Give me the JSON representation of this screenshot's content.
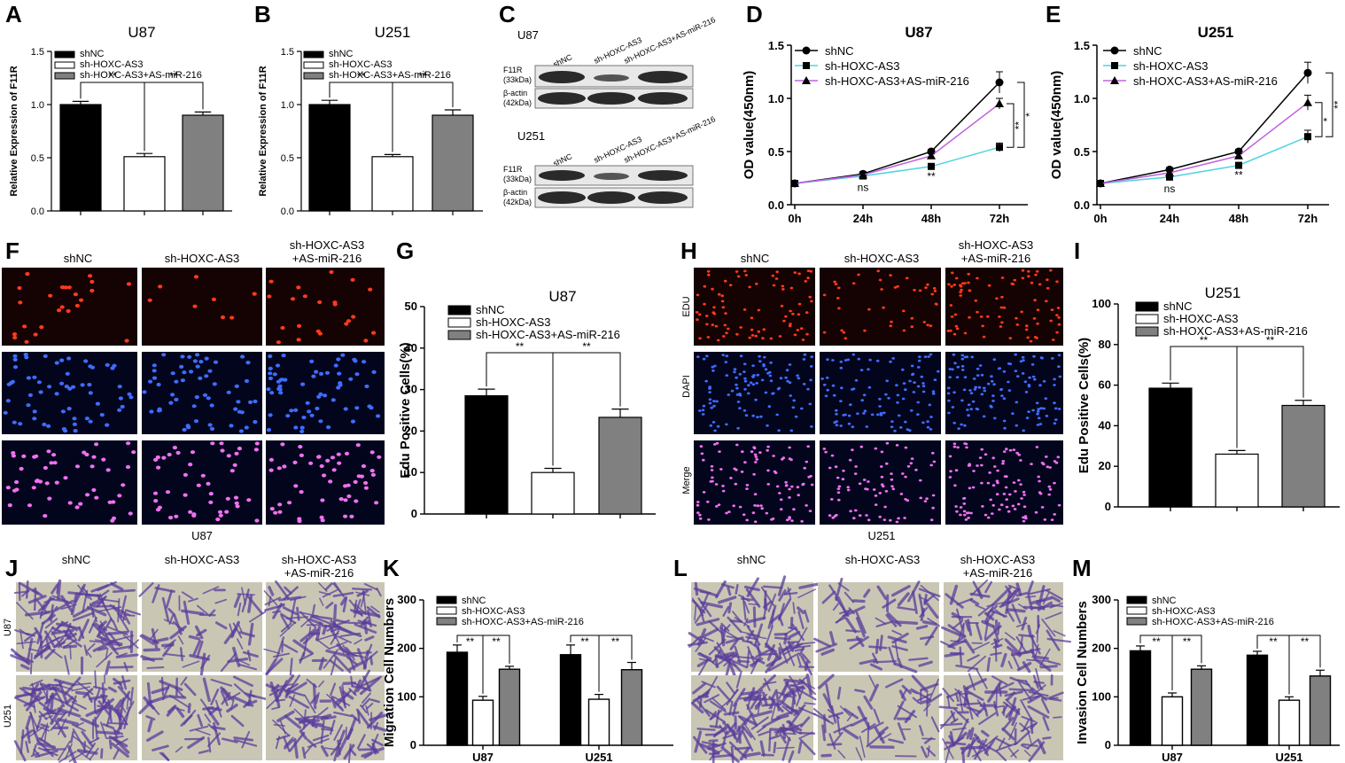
{
  "panels": {
    "A": {
      "label": "A"
    },
    "B": {
      "label": "B"
    },
    "C": {
      "label": "C"
    },
    "D": {
      "label": "D"
    },
    "E": {
      "label": "E"
    },
    "F": {
      "label": "F"
    },
    "G": {
      "label": "G"
    },
    "H": {
      "label": "H"
    },
    "I": {
      "label": "I"
    },
    "J": {
      "label": "J"
    },
    "K": {
      "label": "K"
    },
    "L": {
      "label": "L"
    },
    "M": {
      "label": "M"
    }
  },
  "groups": [
    "shNC",
    "sh-HOXC-AS3",
    "sh-HOXC-AS3+AS-miR-216"
  ],
  "image_panels": {
    "col_shNC": "shNC",
    "col_sh": "sh-HOXC-AS3",
    "col_rescue_1": "sh-HOXC-AS3",
    "col_rescue_2": "+AS-miR-216",
    "edu_rows": [
      "EDU",
      "DAPI",
      "Merge"
    ],
    "F_caption": "U87",
    "H_caption": "U251",
    "transwell_rows": [
      "U87",
      "U251"
    ]
  },
  "western": {
    "cell_U87": "U87",
    "cell_U251": "U251",
    "lanes": [
      "shNC",
      "sh-HOXC-AS3",
      "sh-HOXC-AS3+AS-miR-216"
    ],
    "f11r_1": "F11R",
    "f11r_2": "(33kDa)",
    "actin_1": "β-actin",
    "actin_2": "(42kDa)"
  },
  "colors": {
    "black": "#000000",
    "white": "#ffffff",
    "gray": "#808080",
    "line_shNC": "#000000",
    "line_sh": "#4fd3e0",
    "line_rescue": "#c060e0",
    "edu_bg": "#150202",
    "edu_dot": "#ff3a1a",
    "dapi_bg": "#03051c",
    "dapi_dot": "#3f6cff",
    "merge_dot": "#f070f0",
    "transwell_bg": "#c9c7b4",
    "transwell_cell": "#5b3d9c",
    "blot_bg": "#e8e8e8",
    "blot_band": "#2a2a2a"
  },
  "chart_data": [
    {
      "id": "A",
      "type": "bar",
      "title": "U87",
      "ylabel": "Relative Expression of F11R",
      "ylim": [
        0,
        1.5
      ],
      "yticks": [
        "0.0",
        "0.5",
        "1.0",
        "1.5"
      ],
      "categories": [
        "shNC",
        "sh-HOXC-AS3",
        "sh-HOXC-AS3+AS-miR-216"
      ],
      "values": [
        1.0,
        0.51,
        0.9
      ],
      "errors": [
        0.03,
        0.03,
        0.03
      ],
      "significance": [
        "**",
        "**"
      ],
      "legend": "top-left"
    },
    {
      "id": "B",
      "type": "bar",
      "title": "U251",
      "ylabel": "Relative Expression of F11R",
      "ylim": [
        0,
        1.5
      ],
      "yticks": [
        "0.0",
        "0.5",
        "1.0",
        "1.5"
      ],
      "categories": [
        "shNC",
        "sh-HOXC-AS3",
        "sh-HOXC-AS3+AS-miR-216"
      ],
      "values": [
        1.0,
        0.51,
        0.9
      ],
      "errors": [
        0.04,
        0.02,
        0.05
      ],
      "significance": [
        "**",
        "**"
      ],
      "legend": "top-left"
    },
    {
      "id": "D",
      "type": "line",
      "title": "U87",
      "ylabel": "OD value(450nm)",
      "ylim": [
        0,
        1.5
      ],
      "yticks": [
        "0.0",
        "0.5",
        "1.0",
        "1.5"
      ],
      "x": [
        "0h",
        "24h",
        "48h",
        "72h"
      ],
      "series": [
        {
          "name": "shNC",
          "values": [
            0.2,
            0.29,
            0.5,
            1.15
          ],
          "errors": [
            0.01,
            0.02,
            0.02,
            0.1
          ]
        },
        {
          "name": "sh-HOXC-AS3",
          "values": [
            0.2,
            0.27,
            0.36,
            0.54
          ],
          "errors": [
            0.01,
            0.02,
            0.02,
            0.04
          ]
        },
        {
          "name": "sh-HOXC-AS3+AS-miR-216",
          "values": [
            0.2,
            0.28,
            0.46,
            0.95
          ],
          "errors": [
            0.01,
            0.02,
            0.02,
            0.05
          ]
        }
      ],
      "annotations": [
        "ns",
        "**",
        "**",
        "*"
      ],
      "legend": "top-left"
    },
    {
      "id": "E",
      "type": "line",
      "title": "U251",
      "ylabel": "OD value(450nm)",
      "ylim": [
        0,
        1.5
      ],
      "yticks": [
        "0.0",
        "0.5",
        "1.0",
        "1.5"
      ],
      "x": [
        "0h",
        "24h",
        "48h",
        "72h"
      ],
      "series": [
        {
          "name": "shNC",
          "values": [
            0.2,
            0.33,
            0.5,
            1.24
          ],
          "errors": [
            0.01,
            0.02,
            0.02,
            0.1
          ]
        },
        {
          "name": "sh-HOXC-AS3",
          "values": [
            0.2,
            0.26,
            0.37,
            0.64
          ],
          "errors": [
            0.01,
            0.02,
            0.02,
            0.06
          ]
        },
        {
          "name": "sh-HOXC-AS3+AS-miR-216",
          "values": [
            0.2,
            0.3,
            0.46,
            0.96
          ],
          "errors": [
            0.01,
            0.02,
            0.02,
            0.07
          ]
        }
      ],
      "annotations": [
        "ns",
        "**",
        "*",
        "**"
      ],
      "legend": "top-left"
    },
    {
      "id": "G",
      "type": "bar",
      "title": "U87",
      "ylabel": "Edu Positive Cells(%)",
      "ylim": [
        0,
        50
      ],
      "yticks": [
        "0",
        "10",
        "20",
        "30",
        "40",
        "50"
      ],
      "categories": [
        "shNC",
        "sh-HOXC-AS3",
        "sh-HOXC-AS3+AS-miR-216"
      ],
      "values": [
        28.5,
        10.0,
        23.3
      ],
      "errors": [
        1.6,
        1.0,
        2.0
      ],
      "significance": [
        "**",
        "**"
      ],
      "legend": "top-left"
    },
    {
      "id": "I",
      "type": "bar",
      "title": "U251",
      "ylabel": "Edu Positive Cells(%)",
      "ylim": [
        0,
        100
      ],
      "yticks": [
        "0",
        "20",
        "40",
        "60",
        "80",
        "100"
      ],
      "categories": [
        "shNC",
        "sh-HOXC-AS3",
        "sh-HOXC-AS3+AS-miR-216"
      ],
      "values": [
        58.5,
        26.0,
        50.0
      ],
      "errors": [
        2.5,
        1.8,
        2.5
      ],
      "significance": [
        "**",
        "**"
      ],
      "legend": "top-left"
    },
    {
      "id": "K",
      "type": "bar",
      "title": "",
      "ylabel": "Migration Cell Numbers",
      "ylim": [
        0,
        300
      ],
      "yticks": [
        "0",
        "100",
        "200",
        "300"
      ],
      "categories": [
        "U87",
        "U251"
      ],
      "series": [
        {
          "name": "shNC",
          "values": [
            192,
            187
          ],
          "errors": [
            15,
            20
          ]
        },
        {
          "name": "sh-HOXC-AS3",
          "values": [
            93,
            95
          ],
          "errors": [
            8,
            10
          ]
        },
        {
          "name": "sh-HOXC-AS3+AS-miR-216",
          "values": [
            157,
            156
          ],
          "errors": [
            6,
            15
          ]
        }
      ],
      "significance": [
        "**",
        "**",
        "**",
        "**"
      ],
      "legend": "top-left"
    },
    {
      "id": "M",
      "type": "bar",
      "title": "",
      "ylabel": "Invasion Cell Numbers",
      "ylim": [
        0,
        300
      ],
      "yticks": [
        "0",
        "100",
        "200",
        "300"
      ],
      "categories": [
        "U87",
        "U251"
      ],
      "series": [
        {
          "name": "shNC",
          "values": [
            195,
            186
          ],
          "errors": [
            10,
            8
          ]
        },
        {
          "name": "sh-HOXC-AS3",
          "values": [
            100,
            93
          ],
          "errors": [
            8,
            7
          ]
        },
        {
          "name": "sh-HOXC-AS3+AS-miR-216",
          "values": [
            157,
            143
          ],
          "errors": [
            7,
            12
          ]
        }
      ],
      "significance": [
        "**",
        "**",
        "**",
        "**"
      ],
      "legend": "top-left"
    }
  ]
}
